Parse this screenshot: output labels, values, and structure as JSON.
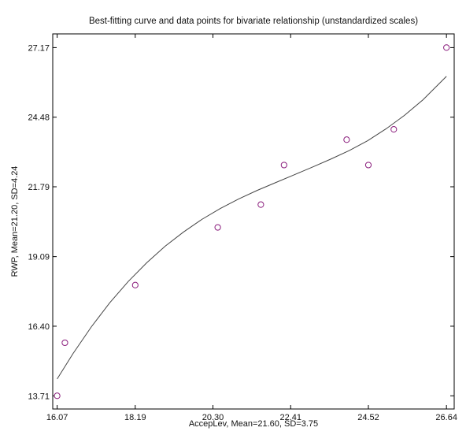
{
  "chart_data": {
    "type": "scatter",
    "title": "Best-fitting curve and data points for bivariate relationship (unstandardized scales)",
    "xlabel": "AccepLev, Mean=21.60, SD=3.75",
    "ylabel": "RWP, Mean=21.20, SD=4.24",
    "xlim": [
      15.95,
      26.85
    ],
    "ylim": [
      13.2,
      27.7
    ],
    "x_ticks": [
      16.07,
      18.19,
      20.3,
      22.41,
      24.52,
      26.64
    ],
    "x_tick_labels": [
      "16.07",
      "18.19",
      "20.30",
      "22.41",
      "24.52",
      "26.64"
    ],
    "y_ticks": [
      13.71,
      16.4,
      19.09,
      21.79,
      24.48,
      27.17
    ],
    "y_tick_labels": [
      "13.71",
      "16.40",
      "19.09",
      "21.79",
      "24.48",
      "27.17"
    ],
    "grid": false,
    "legend": "none",
    "points": {
      "x": [
        16.07,
        16.28,
        18.19,
        20.43,
        21.6,
        22.23,
        23.93,
        24.52,
        25.21,
        26.64
      ],
      "y": [
        13.71,
        15.76,
        17.99,
        20.22,
        21.1,
        22.63,
        23.61,
        22.63,
        24.01,
        27.17
      ]
    },
    "fit_curve": {
      "x": [
        16.07,
        16.5,
        17.0,
        17.5,
        18.0,
        18.5,
        19.0,
        19.5,
        20.0,
        20.5,
        21.0,
        21.5,
        22.0,
        22.5,
        23.0,
        23.5,
        24.0,
        24.5,
        25.0,
        25.5,
        26.0,
        26.64
      ],
      "y": [
        14.36,
        15.34,
        16.38,
        17.31,
        18.13,
        18.85,
        19.49,
        20.04,
        20.53,
        20.95,
        21.32,
        21.65,
        21.95,
        22.25,
        22.55,
        22.86,
        23.19,
        23.57,
        24.03,
        24.55,
        25.15,
        26.06
      ]
    },
    "colors": {
      "marker": "#8a1c7c",
      "curve": "#444444",
      "axes": "#000000"
    }
  }
}
